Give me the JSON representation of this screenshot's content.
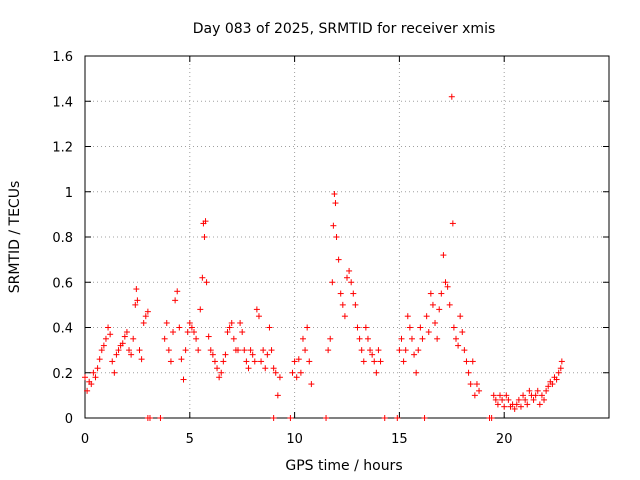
{
  "chart_data": {
    "type": "scatter",
    "title": "Day 083 of 2025, SRMTID for receiver xmis",
    "xlabel": "GPS time / hours",
    "ylabel": "SRMTID / TECUs",
    "xlim": [
      0,
      25
    ],
    "ylim": [
      0,
      1.6
    ],
    "xticks": [
      0,
      5,
      10,
      15,
      20
    ],
    "xtick_labels": [
      "0",
      "5",
      "10",
      "15",
      "20"
    ],
    "yticks": [
      0,
      0.2,
      0.4,
      0.6,
      0.8,
      1,
      1.2,
      1.4,
      1.6
    ],
    "ytick_labels": [
      "0",
      "0.2",
      "0.4",
      "0.6",
      "0.8",
      "1",
      "1.2",
      "1.4",
      "1.6"
    ],
    "grid": true,
    "marker": "+",
    "color": "#ff0000",
    "series": [
      {
        "name": "SRMTID",
        "points": [
          [
            0.0,
            0.18
          ],
          [
            0.1,
            0.12
          ],
          [
            0.2,
            0.16
          ],
          [
            0.3,
            0.15
          ],
          [
            0.4,
            0.2
          ],
          [
            0.5,
            0.18
          ],
          [
            0.6,
            0.22
          ],
          [
            0.7,
            0.26
          ],
          [
            0.8,
            0.3
          ],
          [
            0.9,
            0.32
          ],
          [
            1.0,
            0.35
          ],
          [
            1.1,
            0.4
          ],
          [
            1.2,
            0.37
          ],
          [
            1.3,
            0.25
          ],
          [
            1.4,
            0.2
          ],
          [
            1.5,
            0.28
          ],
          [
            1.6,
            0.3
          ],
          [
            1.7,
            0.32
          ],
          [
            1.8,
            0.33
          ],
          [
            1.9,
            0.36
          ],
          [
            2.0,
            0.38
          ],
          [
            2.1,
            0.3
          ],
          [
            2.2,
            0.28
          ],
          [
            2.3,
            0.35
          ],
          [
            2.4,
            0.5
          ],
          [
            2.45,
            0.57
          ],
          [
            2.5,
            0.52
          ],
          [
            2.6,
            0.3
          ],
          [
            2.7,
            0.26
          ],
          [
            2.8,
            0.42
          ],
          [
            2.9,
            0.45
          ],
          [
            3.0,
            0.47
          ],
          [
            3.0,
            0.0
          ],
          [
            3.1,
            0.0
          ],
          [
            3.6,
            0.0
          ],
          [
            3.8,
            0.35
          ],
          [
            3.9,
            0.42
          ],
          [
            4.0,
            0.3
          ],
          [
            4.1,
            0.25
          ],
          [
            4.2,
            0.38
          ],
          [
            4.3,
            0.52
          ],
          [
            4.4,
            0.56
          ],
          [
            4.5,
            0.4
          ],
          [
            4.6,
            0.26
          ],
          [
            4.7,
            0.17
          ],
          [
            4.8,
            0.3
          ],
          [
            4.9,
            0.38
          ],
          [
            5.0,
            0.42
          ],
          [
            5.1,
            0.4
          ],
          [
            5.2,
            0.38
          ],
          [
            5.3,
            0.35
          ],
          [
            5.4,
            0.3
          ],
          [
            5.5,
            0.48
          ],
          [
            5.6,
            0.62
          ],
          [
            5.65,
            0.86
          ],
          [
            5.7,
            0.8
          ],
          [
            5.75,
            0.87
          ],
          [
            5.8,
            0.6
          ],
          [
            5.9,
            0.36
          ],
          [
            6.0,
            0.3
          ],
          [
            6.1,
            0.28
          ],
          [
            6.2,
            0.25
          ],
          [
            6.3,
            0.22
          ],
          [
            6.4,
            0.18
          ],
          [
            6.5,
            0.2
          ],
          [
            6.6,
            0.25
          ],
          [
            6.7,
            0.28
          ],
          [
            6.8,
            0.38
          ],
          [
            6.9,
            0.4
          ],
          [
            7.0,
            0.42
          ],
          [
            7.1,
            0.35
          ],
          [
            7.2,
            0.3
          ],
          [
            7.3,
            0.3
          ],
          [
            7.4,
            0.42
          ],
          [
            7.5,
            0.38
          ],
          [
            7.6,
            0.3
          ],
          [
            7.7,
            0.25
          ],
          [
            7.8,
            0.22
          ],
          [
            7.9,
            0.3
          ],
          [
            8.0,
            0.28
          ],
          [
            8.1,
            0.25
          ],
          [
            8.2,
            0.48
          ],
          [
            8.3,
            0.45
          ],
          [
            8.4,
            0.25
          ],
          [
            8.5,
            0.3
          ],
          [
            8.6,
            0.22
          ],
          [
            8.7,
            0.28
          ],
          [
            8.8,
            0.4
          ],
          [
            8.9,
            0.3
          ],
          [
            9.0,
            0.22
          ],
          [
            9.0,
            0.0
          ],
          [
            9.1,
            0.2
          ],
          [
            9.2,
            0.1
          ],
          [
            9.3,
            0.18
          ],
          [
            9.8,
            0.0
          ],
          [
            9.9,
            0.2
          ],
          [
            10.0,
            0.25
          ],
          [
            10.1,
            0.18
          ],
          [
            10.2,
            0.26
          ],
          [
            10.3,
            0.2
          ],
          [
            10.4,
            0.35
          ],
          [
            10.5,
            0.3
          ],
          [
            10.6,
            0.4
          ],
          [
            10.7,
            0.25
          ],
          [
            10.8,
            0.15
          ],
          [
            11.5,
            0.0
          ],
          [
            11.6,
            0.3
          ],
          [
            11.7,
            0.35
          ],
          [
            11.8,
            0.6
          ],
          [
            11.85,
            0.85
          ],
          [
            11.9,
            0.99
          ],
          [
            11.95,
            0.95
          ],
          [
            12.0,
            0.8
          ],
          [
            12.1,
            0.7
          ],
          [
            12.2,
            0.55
          ],
          [
            12.3,
            0.5
          ],
          [
            12.4,
            0.45
          ],
          [
            12.5,
            0.62
          ],
          [
            12.6,
            0.65
          ],
          [
            12.7,
            0.6
          ],
          [
            12.8,
            0.55
          ],
          [
            12.9,
            0.5
          ],
          [
            13.0,
            0.4
          ],
          [
            13.1,
            0.35
          ],
          [
            13.2,
            0.3
          ],
          [
            13.3,
            0.25
          ],
          [
            13.4,
            0.4
          ],
          [
            13.5,
            0.35
          ],
          [
            13.6,
            0.3
          ],
          [
            13.7,
            0.28
          ],
          [
            13.8,
            0.25
          ],
          [
            13.9,
            0.2
          ],
          [
            14.0,
            0.3
          ],
          [
            14.1,
            0.25
          ],
          [
            14.3,
            0.0
          ],
          [
            14.9,
            0.0
          ],
          [
            15.0,
            0.3
          ],
          [
            15.1,
            0.35
          ],
          [
            15.2,
            0.25
          ],
          [
            15.3,
            0.3
          ],
          [
            15.4,
            0.45
          ],
          [
            15.5,
            0.4
          ],
          [
            15.6,
            0.35
          ],
          [
            15.7,
            0.28
          ],
          [
            15.8,
            0.2
          ],
          [
            15.9,
            0.3
          ],
          [
            16.0,
            0.4
          ],
          [
            16.1,
            0.35
          ],
          [
            16.2,
            0.0
          ],
          [
            16.3,
            0.45
          ],
          [
            16.4,
            0.38
          ],
          [
            16.5,
            0.55
          ],
          [
            16.6,
            0.5
          ],
          [
            16.7,
            0.42
          ],
          [
            16.8,
            0.35
          ],
          [
            16.9,
            0.48
          ],
          [
            17.0,
            0.55
          ],
          [
            17.1,
            0.72
          ],
          [
            17.2,
            0.6
          ],
          [
            17.3,
            0.58
          ],
          [
            17.4,
            0.5
          ],
          [
            17.5,
            1.42
          ],
          [
            17.55,
            0.86
          ],
          [
            17.6,
            0.4
          ],
          [
            17.7,
            0.35
          ],
          [
            17.8,
            0.32
          ],
          [
            17.9,
            0.45
          ],
          [
            18.0,
            0.38
          ],
          [
            18.1,
            0.3
          ],
          [
            18.2,
            0.25
          ],
          [
            18.3,
            0.2
          ],
          [
            18.4,
            0.15
          ],
          [
            18.5,
            0.25
          ],
          [
            18.6,
            0.1
          ],
          [
            18.7,
            0.15
          ],
          [
            18.8,
            0.12
          ],
          [
            19.3,
            0.0
          ],
          [
            19.4,
            0.0
          ],
          [
            19.5,
            0.1
          ],
          [
            19.6,
            0.08
          ],
          [
            19.7,
            0.06
          ],
          [
            19.8,
            0.1
          ],
          [
            19.9,
            0.08
          ],
          [
            20.0,
            0.05
          ],
          [
            20.1,
            0.1
          ],
          [
            20.2,
            0.08
          ],
          [
            20.3,
            0.05
          ],
          [
            20.4,
            0.06
          ],
          [
            20.5,
            0.04
          ],
          [
            20.6,
            0.06
          ],
          [
            20.7,
            0.08
          ],
          [
            20.8,
            0.05
          ],
          [
            20.9,
            0.1
          ],
          [
            21.0,
            0.08
          ],
          [
            21.1,
            0.06
          ],
          [
            21.2,
            0.12
          ],
          [
            21.3,
            0.1
          ],
          [
            21.4,
            0.08
          ],
          [
            21.5,
            0.1
          ],
          [
            21.6,
            0.12
          ],
          [
            21.7,
            0.06
          ],
          [
            21.8,
            0.1
          ],
          [
            21.9,
            0.08
          ],
          [
            22.0,
            0.12
          ],
          [
            22.1,
            0.14
          ],
          [
            22.2,
            0.16
          ],
          [
            22.3,
            0.15
          ],
          [
            22.4,
            0.18
          ],
          [
            22.5,
            0.17
          ],
          [
            22.6,
            0.2
          ],
          [
            22.7,
            0.22
          ],
          [
            22.75,
            0.25
          ]
        ]
      }
    ]
  }
}
